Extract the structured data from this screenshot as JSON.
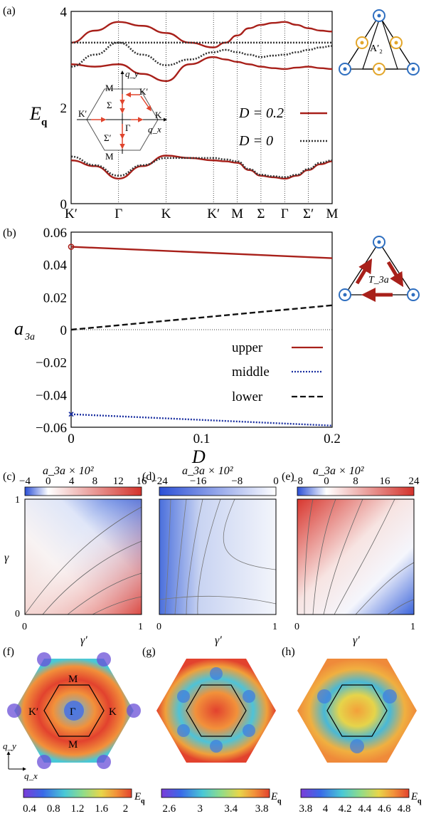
{
  "chart_data": [
    {
      "panel": "(a)",
      "type": "line",
      "ylabel": "E_q",
      "ylim": [
        0,
        4
      ],
      "y_ticks": [
        "0",
        "2",
        "4"
      ],
      "x_ticks": [
        "K′",
        "Γ",
        "K",
        "K′",
        "M",
        "Σ",
        "Γ",
        "Σ′",
        "M"
      ],
      "x_tick_positions": [
        0,
        1,
        2,
        3,
        3.5,
        4,
        4.5,
        5,
        5.5
      ],
      "series": [
        {
          "name": "D = 0.2",
          "style": "solid",
          "color": "#a8201a",
          "band": "lower",
          "x": [
            0,
            0.5,
            1,
            1.5,
            2,
            2.5,
            3,
            3.25,
            3.5,
            3.75,
            4,
            4.25,
            4.5,
            4.75,
            5,
            5.25,
            5.5
          ],
          "values": [
            0.9,
            0.78,
            0.52,
            0.78,
            1.0,
            0.95,
            0.9,
            0.88,
            0.85,
            0.7,
            0.58,
            0.55,
            0.52,
            0.58,
            0.7,
            0.82,
            0.88
          ]
        },
        {
          "name": "D = 0.2",
          "style": "solid",
          "color": "#a8201a",
          "band": "middle",
          "x": [
            0,
            0.5,
            1,
            1.5,
            2,
            2.5,
            3,
            3.25,
            3.5,
            3.75,
            4,
            4.25,
            4.5,
            4.75,
            5,
            5.25,
            5.5
          ],
          "values": [
            2.9,
            2.85,
            2.9,
            2.7,
            2.55,
            2.9,
            3.05,
            3.0,
            2.95,
            2.9,
            2.85,
            2.82,
            2.8,
            2.83,
            2.85,
            2.82,
            2.8
          ]
        },
        {
          "name": "D = 0.2",
          "style": "solid",
          "color": "#a8201a",
          "band": "upper",
          "x": [
            0,
            0.5,
            1,
            1.5,
            2,
            2.5,
            3,
            3.25,
            3.5,
            3.75,
            4,
            4.25,
            4.5,
            4.75,
            5,
            5.25,
            5.5
          ],
          "values": [
            3.35,
            3.6,
            3.78,
            3.7,
            3.55,
            3.35,
            3.25,
            3.35,
            3.5,
            3.65,
            3.72,
            3.76,
            3.78,
            3.72,
            3.65,
            3.6,
            3.58
          ]
        },
        {
          "name": "D = 0",
          "style": "dotted",
          "color": "#333333",
          "band": "lower",
          "x": [
            0,
            0.5,
            1,
            1.5,
            2,
            2.5,
            3,
            3.25,
            3.5,
            3.75,
            4,
            4.25,
            4.5,
            4.75,
            5,
            5.25,
            5.5
          ],
          "values": [
            0.98,
            0.8,
            0.58,
            0.8,
            0.95,
            0.95,
            0.95,
            0.92,
            0.88,
            0.72,
            0.6,
            0.57,
            0.55,
            0.6,
            0.72,
            0.85,
            0.9
          ]
        },
        {
          "name": "D = 0",
          "style": "dotted",
          "color": "#333333",
          "band": "middle",
          "x": [
            0,
            0.5,
            1,
            1.5,
            2,
            2.5,
            3,
            3.25,
            3.5,
            3.75,
            4,
            4.25,
            4.5,
            4.75,
            5,
            5.25,
            5.5
          ],
          "values": [
            2.85,
            3.1,
            3.35,
            3.1,
            2.88,
            3.0,
            3.15,
            3.2,
            3.15,
            3.1,
            3.05,
            3.08,
            3.1,
            3.15,
            3.2,
            3.25,
            3.28
          ]
        },
        {
          "name": "D = 0",
          "style": "dotted",
          "color": "#333333",
          "band": "flat",
          "x": [
            0,
            5.5
          ],
          "values": [
            3.35,
            3.35
          ]
        }
      ],
      "legend": [
        {
          "label": "D = 0.2",
          "style": "solid"
        },
        {
          "label": "D = 0",
          "style": "dotted"
        }
      ],
      "inset_labels": [
        "q_y",
        "q_x",
        "M",
        "K′",
        "Σ",
        "K′",
        "K",
        "Γ",
        "Σ′",
        "M"
      ],
      "side_diagram_label": "A′₂"
    },
    {
      "panel": "(b)",
      "type": "line",
      "xlabel": "D",
      "ylabel": "a_3a",
      "xlim": [
        0,
        0.2
      ],
      "ylim": [
        -0.06,
        0.06
      ],
      "x_ticks": [
        "0",
        "0.1",
        "0.2"
      ],
      "y_ticks": [
        "0.06",
        "0.04",
        "0.02",
        "0",
        "−0.02",
        "−0.04",
        "−0.06"
      ],
      "series": [
        {
          "name": "upper",
          "style": "solid",
          "color": "#a8201a",
          "x": [
            0,
            0.2
          ],
          "values": [
            0.051,
            0.044
          ]
        },
        {
          "name": "middle",
          "style": "dotted",
          "color": "#1a2fa0",
          "x": [
            0,
            0.2
          ],
          "values": [
            -0.052,
            -0.059
          ]
        },
        {
          "name": "lower",
          "style": "dashed",
          "color": "#111111",
          "x": [
            0,
            0.2
          ],
          "values": [
            0.0,
            0.015
          ]
        }
      ],
      "legend": [
        {
          "label": "upper"
        },
        {
          "label": "middle"
        },
        {
          "label": "lower"
        }
      ],
      "side_diagram_label": "T_3a"
    },
    {
      "panel": "(c)",
      "type": "heatmap",
      "colorbar_title": "a_3a × 10²",
      "colorbar_ticks": [
        "−4",
        "0",
        "4",
        "8",
        "12",
        "16"
      ],
      "colorbar_range": [
        -4,
        16
      ],
      "xlabel": "γ′",
      "ylabel": "γ",
      "x_ticks": [
        "0",
        "1"
      ],
      "y_ticks": [
        "0",
        "1"
      ]
    },
    {
      "panel": "(d)",
      "type": "heatmap",
      "colorbar_title": "a_3a × 10²",
      "colorbar_ticks": [
        "−24",
        "−16",
        "−8",
        "0"
      ],
      "colorbar_range": [
        -24,
        0
      ],
      "xlabel": "γ′",
      "x_ticks": [
        "0",
        "1"
      ]
    },
    {
      "panel": "(e)",
      "type": "heatmap",
      "colorbar_title": "a_3a × 10²",
      "colorbar_ticks": [
        "−8",
        "0",
        "8",
        "16",
        "24"
      ],
      "colorbar_range": [
        -8,
        24
      ],
      "xlabel": "γ′",
      "x_ticks": [
        "0",
        "1"
      ]
    },
    {
      "panel": "(f)",
      "type": "heatmap",
      "colorbar_title": "E_q",
      "colorbar_ticks": [
        "0.4",
        "0.8",
        "1.2",
        "1.6",
        "2"
      ],
      "colorbar_range": [
        0.3,
        2.1
      ],
      "bz_labels": [
        "M",
        "K′",
        "Γ",
        "K",
        "M"
      ],
      "axis_labels": [
        "q_y",
        "q_x"
      ]
    },
    {
      "panel": "(g)",
      "type": "heatmap",
      "colorbar_title": "E_q",
      "colorbar_ticks": [
        "2.6",
        "3",
        "3.4",
        "3.8"
      ],
      "colorbar_range": [
        2.5,
        3.9
      ]
    },
    {
      "panel": "(h)",
      "type": "heatmap",
      "colorbar_title": "E_q",
      "colorbar_ticks": [
        "3.8",
        "4",
        "4.2",
        "4.4",
        "4.6",
        "4.8"
      ],
      "colorbar_range": [
        3.75,
        4.85
      ]
    }
  ],
  "panel_labels": [
    "(a)",
    "(b)",
    "(c)",
    "(d)",
    "(e)",
    "(f)",
    "(g)",
    "(h)"
  ],
  "colors": {
    "red": "#a8201a",
    "blue": "#1a2fa0",
    "ring_blue": "#2f6fc0",
    "ring_gold": "#e3a62a"
  }
}
